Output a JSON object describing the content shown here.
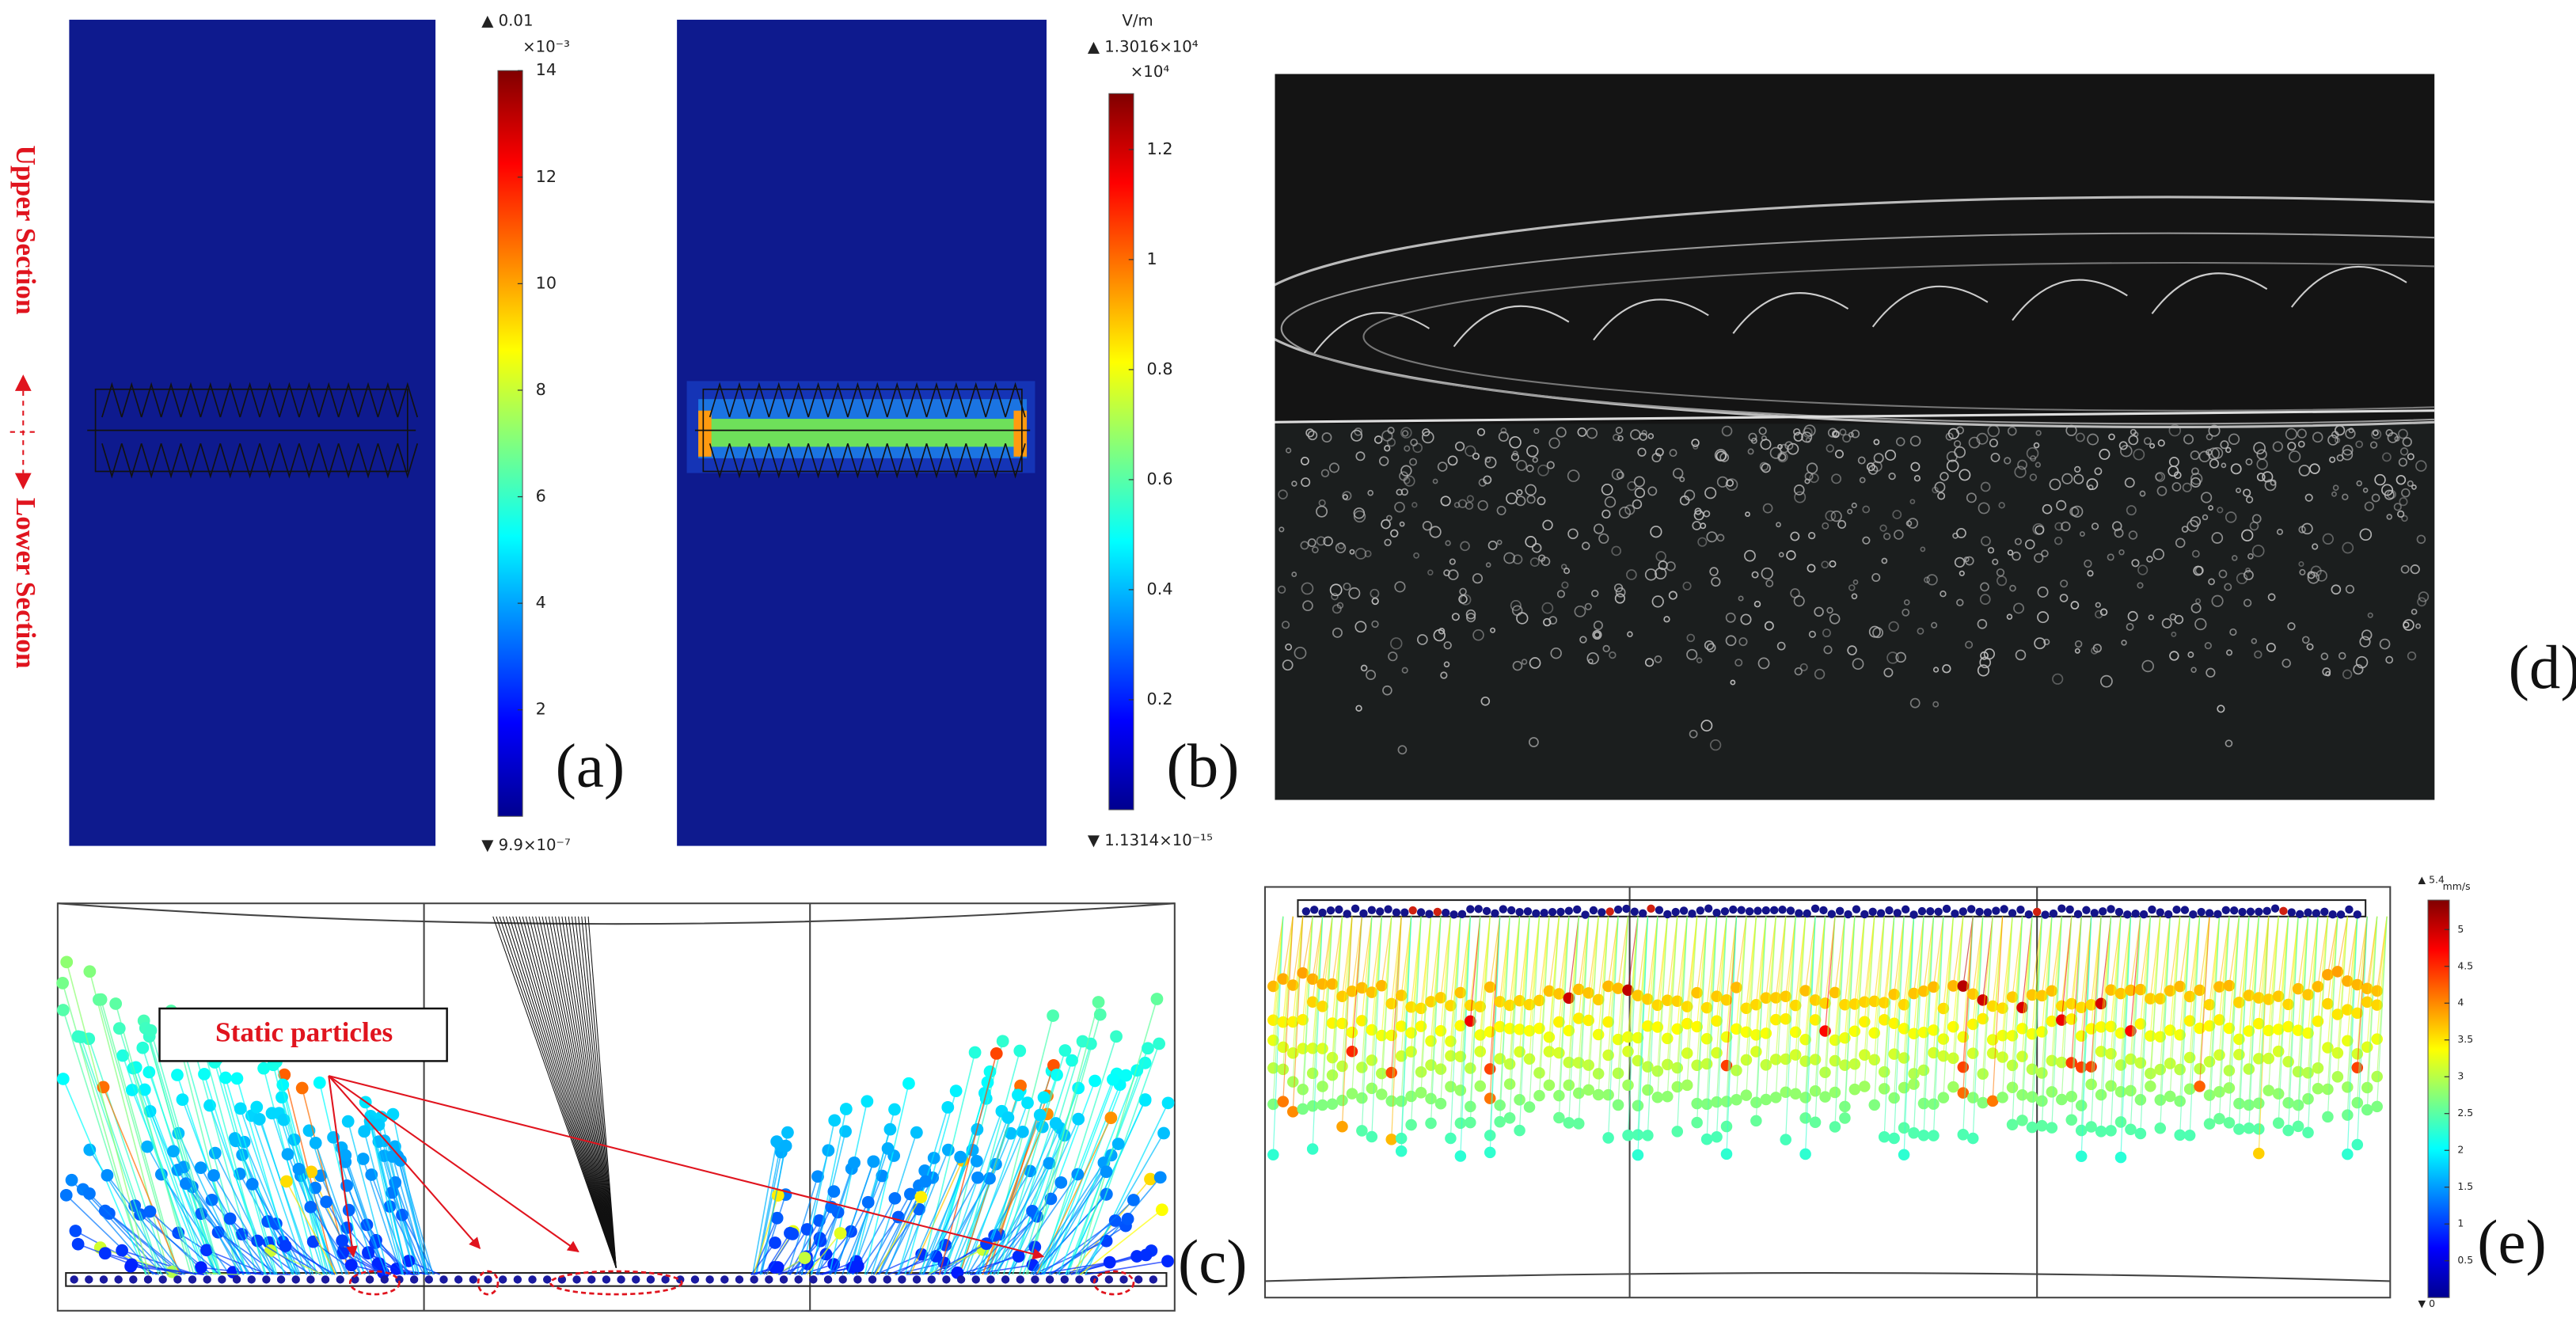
{
  "side_labels": {
    "upper": "Upper Section",
    "lower": "Lower Section"
  },
  "panels": {
    "a": {
      "label": "(a)",
      "colorbar": {
        "max_label": "▲ 0.01",
        "multiplier": "×10⁻³",
        "min_label": "▼ 9.9×10⁻⁷",
        "range": [
          0,
          14
        ],
        "ticks": [
          14,
          12,
          10,
          8,
          6,
          4,
          2
        ]
      }
    },
    "b": {
      "label": "(b)",
      "colorbar": {
        "unit": "V/m",
        "max_label": "▲ 1.3016×10⁴",
        "multiplier": "×10⁴",
        "min_label": "▼ 1.1314×10⁻¹⁵",
        "range": [
          0,
          1.3016
        ],
        "ticks": [
          1.2,
          1,
          0.8,
          0.6,
          0.4,
          0.2
        ]
      }
    },
    "c": {
      "label": "(c)",
      "annotation": "Static particles"
    },
    "d": {
      "label": "(d)"
    },
    "e": {
      "label": "(e)",
      "colorbar": {
        "unit": "mm/s",
        "max_label": "▲ 5.4",
        "min_label": "▼ 0",
        "range": [
          0,
          5.4
        ],
        "ticks": [
          5,
          4.5,
          4,
          3.5,
          3,
          2.5,
          2,
          1.5,
          1,
          0.5
        ]
      }
    }
  }
}
